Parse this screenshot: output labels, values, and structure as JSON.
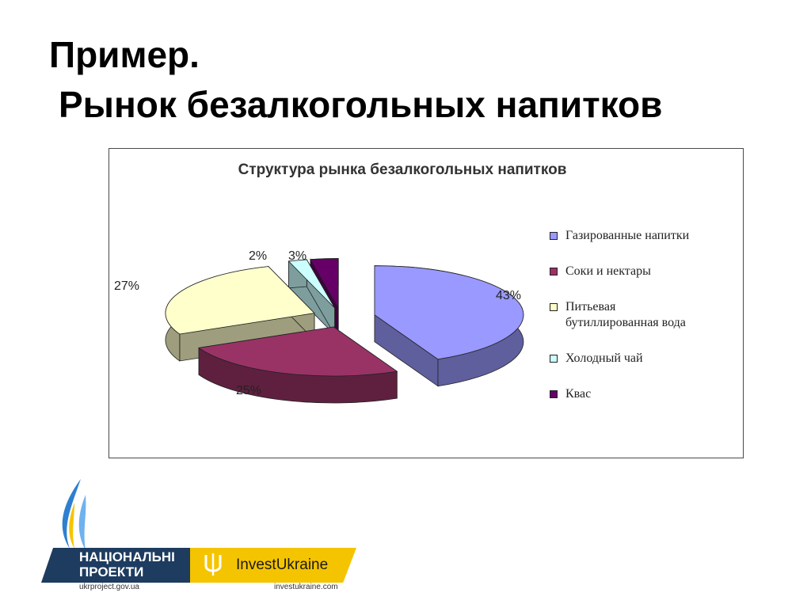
{
  "slide": {
    "title_line1": "Пример.",
    "title_line2": "Рынок безалкогольных напитков"
  },
  "chart_data": {
    "type": "pie",
    "title": "Структура рынка безалкогольных напитков",
    "series": [
      {
        "name": "Газированные напитки",
        "value": 43,
        "label": "43%",
        "color": "#9999ff"
      },
      {
        "name": "Соки и нектары",
        "value": 25,
        "label": "25%",
        "color": "#993366"
      },
      {
        "name": "Питьевая бутиллированная вода",
        "value": 27,
        "label": "27%",
        "color": "#ffffcc"
      },
      {
        "name": "Холодный чай",
        "value": 2,
        "label": "2%",
        "color": "#ccffff"
      },
      {
        "name": "Квас",
        "value": 3,
        "label": "3%",
        "color": "#660066"
      }
    ],
    "legend_labels": {
      "item0": "Газированные напитки",
      "item1": "Соки и нектары",
      "item2_line1": "Питьевая",
      "item2_line2": "бутиллированная вода",
      "item3": "Холодный чай",
      "item4": "Квас"
    },
    "legend_position": "right",
    "style": "3d exploded pie"
  },
  "logos": {
    "left_line1": "НАЦІОНАЛЬНІ",
    "left_line2": "ПРОЕКТИ",
    "left_url": "ukrproject.gov.ua",
    "right_name_a": "Invest",
    "right_name_b": "Ukraine",
    "right_url": "investukraine.com",
    "colors": {
      "navy": "#1d3c5f",
      "yellow": "#f5c400",
      "blue_flame": "#2f7fd0"
    }
  }
}
